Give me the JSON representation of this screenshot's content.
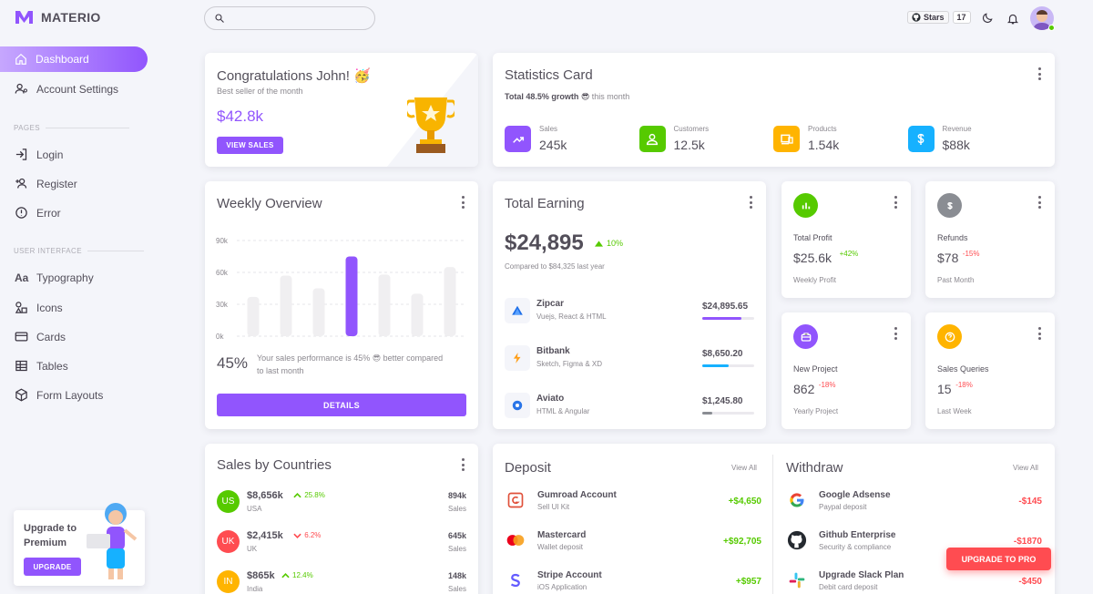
{
  "brand": {
    "name": "MATERIO"
  },
  "topbar": {
    "github_label": "Stars",
    "github_count": "17"
  },
  "sidebar": {
    "items": [
      {
        "label": "Dashboard"
      },
      {
        "label": "Account Settings"
      }
    ],
    "section_pages": "PAGES",
    "pages": [
      {
        "label": "Login"
      },
      {
        "label": "Register"
      },
      {
        "label": "Error"
      }
    ],
    "section_ui": "USER INTERFACE",
    "ui": [
      {
        "label": "Typography"
      },
      {
        "label": "Icons"
      },
      {
        "label": "Cards"
      },
      {
        "label": "Tables"
      },
      {
        "label": "Form Layouts"
      }
    ],
    "upgrade": {
      "title": "Upgrade to Premium",
      "button": "UPGRADE"
    }
  },
  "congrats": {
    "title": "Congratulations John! 🥳",
    "subtitle": "Best seller of the month",
    "amount": "$42.8k",
    "button": "VIEW SALES"
  },
  "statistics": {
    "title": "Statistics Card",
    "growth_bold": "Total 48.5% growth",
    "growth_emoji": "😎",
    "growth_rest": "this month",
    "items": [
      {
        "label": "Sales",
        "value": "245k",
        "color": "#9155fd"
      },
      {
        "label": "Customers",
        "value": "12.5k",
        "color": "#56ca00"
      },
      {
        "label": "Products",
        "value": "1.54k",
        "color": "#ffb400"
      },
      {
        "label": "Revenue",
        "value": "$88k",
        "color": "#16b1ff"
      }
    ]
  },
  "weekly": {
    "title": "Weekly Overview",
    "percent": "45%",
    "text": "Your sales performance is 45% 😎 better compared to last month",
    "button": "DETAILS",
    "chart_data": {
      "type": "bar",
      "categories": [
        "",
        "",
        "",
        "",
        "",
        "",
        ""
      ],
      "values": [
        37,
        57,
        45,
        75,
        58,
        40,
        65
      ],
      "highlight_index": 3,
      "ylim": [
        0,
        90
      ],
      "yticks": [
        "90k",
        "60k",
        "30k",
        "0k"
      ]
    }
  },
  "earning": {
    "title": "Total Earning",
    "amount": "$24,895",
    "change": "10%",
    "compare": "Compared to $84,325 last year",
    "items": [
      {
        "name": "Zipcar",
        "sub": "Vuejs, React & HTML",
        "amount": "$24,895.65",
        "progress": 0.75,
        "color": "#9155fd"
      },
      {
        "name": "Bitbank",
        "sub": "Sketch, Figma & XD",
        "amount": "$8,650.20",
        "progress": 0.5,
        "color": "#16b1ff"
      },
      {
        "name": "Aviato",
        "sub": "HTML & Angular",
        "amount": "$1,245.80",
        "progress": 0.2,
        "color": "#8a8d93"
      }
    ]
  },
  "mini": [
    {
      "title": "Total Profit",
      "value": "$25.6k",
      "change": "+42%",
      "sub": "Weekly Profit",
      "color": "#56ca00",
      "up": true
    },
    {
      "title": "Refunds",
      "value": "$78",
      "change": "-15%",
      "sub": "Past Month",
      "color": "#8a8d93",
      "up": false
    },
    {
      "title": "New Project",
      "value": "862",
      "change": "-18%",
      "sub": "Yearly Project",
      "color": "#9155fd",
      "up": false
    },
    {
      "title": "Sales Queries",
      "value": "15",
      "change": "-18%",
      "sub": "Last Week",
      "color": "#ffb400",
      "up": false
    }
  ],
  "countries": {
    "title": "Sales by Countries",
    "rows": [
      {
        "code": "US",
        "amount": "$8,656k",
        "change": "25.8%",
        "country": "USA",
        "sales": "894k",
        "sales_label": "Sales",
        "color": "#56ca00",
        "up": true
      },
      {
        "code": "UK",
        "amount": "$2,415k",
        "change": "6.2%",
        "country": "UK",
        "sales": "645k",
        "sales_label": "Sales",
        "color": "#ff4c51",
        "up": false
      },
      {
        "code": "IN",
        "amount": "$865k",
        "change": "12.4%",
        "country": "India",
        "sales": "148k",
        "sales_label": "Sales",
        "color": "#ffb400",
        "up": true
      }
    ]
  },
  "deposit": {
    "title": "Deposit",
    "view_all": "View All",
    "rows": [
      {
        "name": "Gumroad Account",
        "sub": "Sell UI Kit",
        "amount": "+$4,650"
      },
      {
        "name": "Mastercard",
        "sub": "Wallet deposit",
        "amount": "+$92,705"
      },
      {
        "name": "Stripe Account",
        "sub": "iOS Application",
        "amount": "+$957"
      }
    ]
  },
  "withdraw": {
    "title": "Withdraw",
    "view_all": "View All",
    "rows": [
      {
        "name": "Google Adsense",
        "sub": "Paypal deposit",
        "amount": "-$145"
      },
      {
        "name": "Github Enterprise",
        "sub": "Security & compliance",
        "amount": "-$1870"
      },
      {
        "name": "Upgrade Slack Plan",
        "sub": "Debit card deposit",
        "amount": "-$450"
      }
    ]
  },
  "floating": {
    "upgrade_pro": "UPGRADE TO PRO"
  }
}
